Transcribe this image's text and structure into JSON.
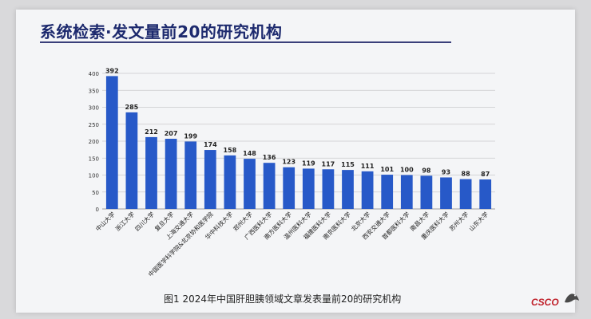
{
  "header": {
    "title": "系统检索·发文量前20的研究机构"
  },
  "chart_data": {
    "type": "bar",
    "title": "",
    "xlabel": "",
    "ylabel": "",
    "ylim": [
      0,
      400
    ],
    "yticks": [
      0,
      50,
      100,
      150,
      200,
      250,
      300,
      350,
      400
    ],
    "categories": [
      "中山大学",
      "浙江大学",
      "四川大学",
      "复旦大学",
      "上海交通大学",
      "中国医学科学院&北京协和医学院",
      "华中科技大学",
      "郑州大学",
      "广西医科大学",
      "南方医科大学",
      "温州医科大学",
      "福建医科大学",
      "南京医科大学",
      "北京大学",
      "西安交通大学",
      "首都医科大学",
      "南昌大学",
      "重庆医科大学",
      "苏州大学",
      "山东大学"
    ],
    "values": [
      392,
      285,
      212,
      207,
      199,
      174,
      158,
      148,
      136,
      123,
      119,
      117,
      115,
      111,
      101,
      100,
      98,
      93,
      88,
      87
    ],
    "bar_color": "#2759c8"
  },
  "caption": "图1  2024年中国肝胆胰领域文章发表量前20的研究机构",
  "logo": {
    "text": "CSCO"
  }
}
